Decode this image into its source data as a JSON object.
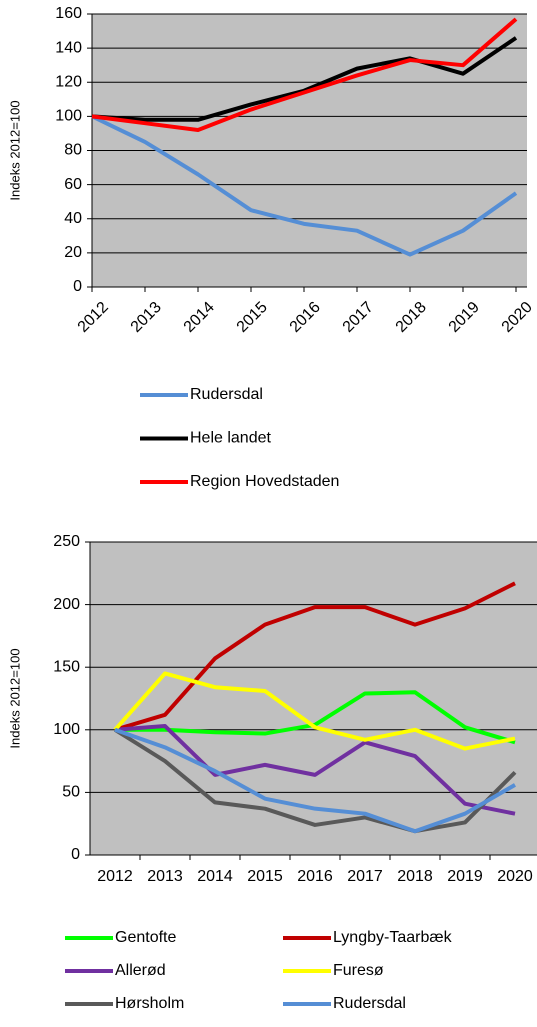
{
  "chart_data": [
    {
      "type": "line",
      "ylabel": "Indeks 2012=100",
      "categories": [
        "2012",
        "2013",
        "2014",
        "2015",
        "2016",
        "2017",
        "2018",
        "2019",
        "2020"
      ],
      "ylim": [
        0,
        160
      ],
      "yticks": [
        0,
        20,
        40,
        60,
        80,
        100,
        120,
        140,
        160
      ],
      "grid": true,
      "legend": "bottom",
      "series": [
        {
          "name": "Rudersdal",
          "color": "#558ed5",
          "values": [
            100,
            85,
            66,
            45,
            37,
            33,
            19,
            33,
            55
          ]
        },
        {
          "name": "Hele landet",
          "color": "#000000",
          "values": [
            100,
            98,
            98,
            107,
            115,
            128,
            134,
            125,
            146
          ]
        },
        {
          "name": "Region Hovedstaden",
          "color": "#ff0000",
          "values": [
            100,
            96,
            92,
            104,
            114,
            124,
            133,
            130,
            157
          ]
        }
      ]
    },
    {
      "type": "line",
      "ylabel": "Indeks 2012=100",
      "categories": [
        "2012",
        "2013",
        "2014",
        "2015",
        "2016",
        "2017",
        "2018",
        "2019",
        "2020"
      ],
      "ylim": [
        0,
        250
      ],
      "yticks": [
        0,
        50,
        100,
        150,
        200,
        250
      ],
      "grid": true,
      "legend": "bottom",
      "series": [
        {
          "name": "Gentofte",
          "color": "#00ff00",
          "values": [
            100,
            100,
            98,
            97,
            104,
            129,
            130,
            102,
            90
          ]
        },
        {
          "name": "Lyngby-Taarbæk",
          "color": "#c00000",
          "values": [
            100,
            112,
            157,
            184,
            198,
            198,
            184,
            197,
            217
          ]
        },
        {
          "name": "Allerød",
          "color": "#7030a0",
          "values": [
            100,
            103,
            64,
            72,
            64,
            90,
            79,
            41,
            33
          ]
        },
        {
          "name": "Furesø",
          "color": "#ffff00",
          "values": [
            100,
            145,
            134,
            131,
            102,
            92,
            100,
            85,
            93
          ]
        },
        {
          "name": "Hørsholm",
          "color": "#595959",
          "values": [
            100,
            75,
            42,
            37,
            24,
            30,
            19,
            26,
            66
          ]
        },
        {
          "name": "Rudersdal",
          "color": "#558ed5",
          "values": [
            100,
            86,
            67,
            45,
            37,
            33,
            19,
            33,
            56
          ]
        }
      ]
    }
  ]
}
